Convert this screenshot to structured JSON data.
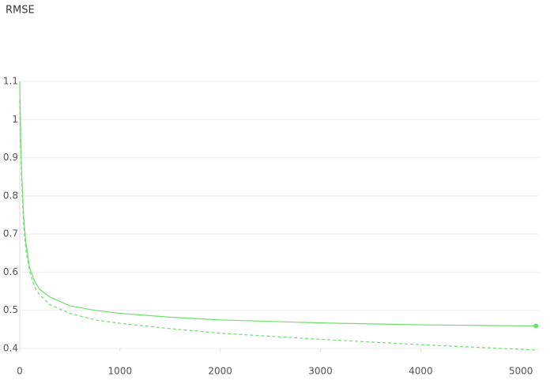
{
  "chart_data": {
    "type": "line",
    "title": "RMSE",
    "x": [
      0,
      10,
      20,
      40,
      60,
      100,
      150,
      200,
      300,
      500,
      750,
      1000,
      1500,
      2000,
      3000,
      4000,
      5150
    ],
    "series": [
      {
        "color": "#6ddf6d",
        "dash": false,
        "end_marker": true,
        "values": [
          1.1,
          0.95,
          0.85,
          0.74,
          0.68,
          0.61,
          0.575,
          0.555,
          0.535,
          0.512,
          0.5,
          0.492,
          0.482,
          0.475,
          0.467,
          0.462,
          0.459
        ]
      },
      {
        "color": "#6ddf6d",
        "dash": true,
        "end_marker": false,
        "values": [
          1.05,
          0.93,
          0.83,
          0.72,
          0.66,
          0.6,
          0.56,
          0.54,
          0.515,
          0.492,
          0.475,
          0.466,
          0.452,
          0.44,
          0.424,
          0.41,
          0.396
        ]
      }
    ],
    "xlim": [
      0,
      5180
    ],
    "xticks": [
      0,
      1000,
      2000,
      3000,
      4000,
      5000
    ],
    "ylim": [
      0.4,
      1.1
    ],
    "yticks": [
      0.4,
      0.5,
      0.6,
      0.7,
      0.8,
      0.9,
      1,
      1.1
    ],
    "grid": true
  }
}
